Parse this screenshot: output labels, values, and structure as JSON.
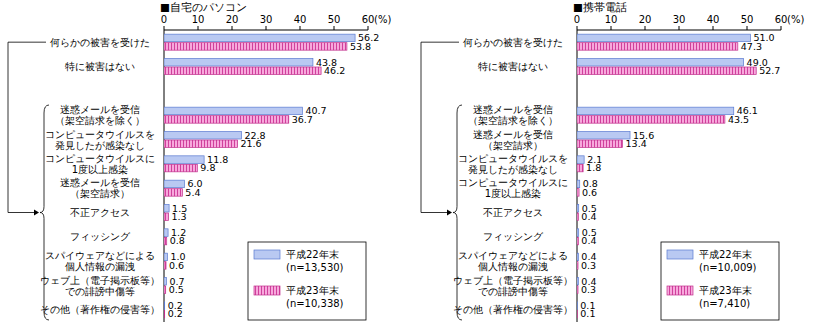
{
  "chart_data": [
    {
      "type": "bar",
      "orientation": "horizontal",
      "title": "■自宅のパソコン",
      "xlabel": "(%)",
      "categories": [
        "何らかの被害を受けた",
        "特に被害はない",
        null,
        "迷惑メールを受信\n（架空請求を除く）",
        "コンピュータウイルスを\n発見したが感染なし",
        "コンピュータウイルスに\n1度以上感染",
        "迷惑メールを受信\n（架空請求）",
        "不正アクセス",
        "フィッシング",
        "スパイウェアなどによる\n個人情報の漏洩",
        "ウェブ上（電子掲示板等）\nでの誹謗中傷等",
        "その他（著作権の侵害等）"
      ],
      "series": [
        {
          "name": "平成22年末\n(n=13,530)",
          "color": "#b9c9f2",
          "values": [
            56.2,
            43.8,
            null,
            40.7,
            22.8,
            11.8,
            6.0,
            1.5,
            1.2,
            1.0,
            0.7,
            0.2
          ],
          "value_labels": [
            "56.2",
            "43.8",
            null,
            "40.7",
            "22.8",
            "11.8",
            "6.0",
            "1.5",
            "1.2",
            "1.0",
            "0.7",
            "0.2"
          ]
        },
        {
          "name": "平成23年末\n(n=10,338)",
          "color": "#f7a8dc",
          "values": [
            53.8,
            46.2,
            null,
            36.7,
            21.6,
            9.8,
            5.4,
            1.3,
            0.8,
            0.6,
            0.5,
            0.2
          ],
          "value_labels": [
            "53.8",
            "46.2",
            null,
            "36.7",
            "21.6",
            "9.8",
            "5.4",
            "1.3",
            "0.8",
            "0.6",
            "0.5",
            "0.2"
          ]
        }
      ],
      "xlim": [
        0,
        60
      ],
      "xticks": [
        0,
        10,
        20,
        30,
        40,
        50,
        60
      ],
      "grid": false,
      "legend": "lower right",
      "data_labels": true
    },
    {
      "type": "bar",
      "orientation": "horizontal",
      "title": "■携帯電話",
      "xlabel": "(%)",
      "categories": [
        "何らかの被害を受けた",
        "特に被害はない",
        null,
        "迷惑メールを受信\n（架空請求を除く）",
        "迷惑メールを受信\n（架空請求）",
        "コンピュータウイルスを\n発見したが感染なし",
        "コンピュータウイルスに\n1度以上感染",
        "不正アクセス",
        "フィッシング",
        "スパイウェアなどによる\n個人情報の漏洩",
        "ウェブ上（電子掲示板等）\nでの誹謗中傷等",
        "その他（著作権の侵害等）"
      ],
      "series": [
        {
          "name": "平成22年末\n(n=10,009)",
          "color": "#b9c9f2",
          "values": [
            51.0,
            49.0,
            null,
            46.1,
            15.6,
            2.1,
            0.8,
            0.5,
            0.5,
            0.4,
            0.4,
            0.1
          ],
          "value_labels": [
            "51.0",
            "49.0",
            null,
            "46.1",
            "15.6",
            "2.1",
            "0.8",
            "0.5",
            "0.5",
            "0.4",
            "0.4",
            "0.1"
          ]
        },
        {
          "name": "平成23年末\n(n=7,410)",
          "color": "#f7a8dc",
          "values": [
            47.3,
            52.7,
            null,
            43.5,
            13.4,
            1.8,
            0.6,
            0.4,
            0.4,
            0.3,
            0.3,
            0.1
          ],
          "value_labels": [
            "47.3",
            "52.7",
            null,
            "43.5",
            "13.4",
            "1.8",
            "0.6",
            "0.4",
            "0.4",
            "0.3",
            "0.3",
            "0.1"
          ]
        }
      ],
      "xlim": [
        0,
        60
      ],
      "xticks": [
        0,
        10,
        20,
        30,
        40,
        50,
        60
      ],
      "grid": false,
      "legend": "lower right",
      "data_labels": true
    }
  ]
}
